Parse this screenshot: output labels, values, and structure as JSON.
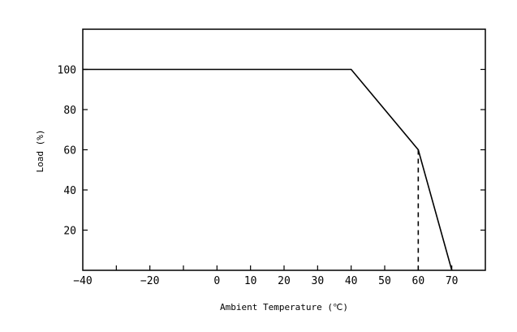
{
  "chart_data": {
    "type": "line",
    "title": "",
    "xlabel": "Ambient Temperature (℃)",
    "ylabel": "Load (%)",
    "xlim": [
      -40,
      80
    ],
    "ylim": [
      0,
      120
    ],
    "x_ticks": [
      -40,
      -30,
      -20,
      -10,
      0,
      10,
      20,
      30,
      40,
      50,
      60,
      70
    ],
    "x_tick_labels": [
      "−40",
      "",
      "−20",
      "",
      "0",
      "10",
      "20",
      "30",
      "40",
      "50",
      "60",
      "70"
    ],
    "y_ticks": [
      20,
      40,
      60,
      80,
      100
    ],
    "y_tick_labels": [
      "20",
      "40",
      "60",
      "80",
      "100"
    ],
    "grid": false,
    "legend": "none",
    "series": [
      {
        "x": [
          -40,
          40,
          60,
          70
        ],
        "y": [
          100,
          100,
          60,
          0
        ],
        "color": "#000000",
        "style": "solid"
      }
    ],
    "reference_lines": [
      {
        "x": [
          60,
          60
        ],
        "y": [
          60,
          0
        ],
        "style": "dashed",
        "color": "#000000"
      }
    ]
  }
}
